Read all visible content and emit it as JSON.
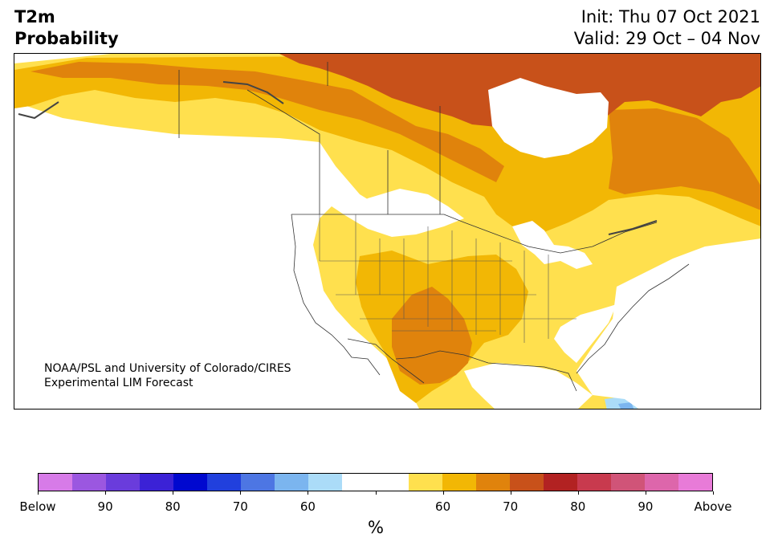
{
  "title": {
    "variable": "T2m",
    "product": "Probability",
    "init": "Init: Thu 07 Oct 2021",
    "valid": "Valid: 29 Oct – 04 Nov"
  },
  "map": {
    "region": "North America",
    "credit_line1": "NOAA/PSL and University of Colorado/CIRES",
    "credit_line2": "Experimental LIM Forecast",
    "category_colors": {
      "above_55_60": "#ffe04e",
      "above_60_65": "#f2b705",
      "above_65_70": "#e0830c",
      "above_70_75": "#c8511a",
      "below_55_60": "#abdcf8",
      "below_60_65": "#7bb5ef"
    }
  },
  "colorbar": {
    "colors": [
      "#d77be8",
      "#9b57e0",
      "#6a3cdc",
      "#3b22d6",
      "#0008cf",
      "#2140dd",
      "#4d76e3",
      "#7bb5ef",
      "#abdcf8",
      "#ffffff",
      "#ffffff",
      "#ffe04e",
      "#f2b705",
      "#e0830c",
      "#c8511a",
      "#b22222",
      "#c83a4e",
      "#d05478",
      "#dd66ab",
      "#e87bd8"
    ],
    "tick_labels": [
      "Below",
      "90",
      "80",
      "70",
      "60",
      "",
      "60",
      "70",
      "80",
      "90",
      "Above"
    ],
    "unit": "%"
  }
}
